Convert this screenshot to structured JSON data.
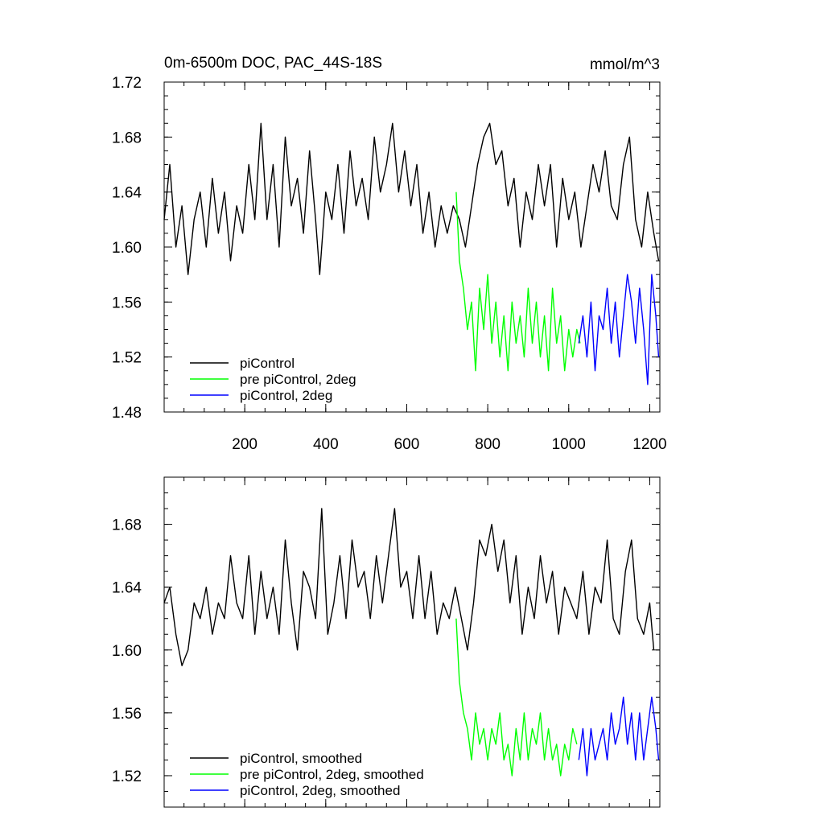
{
  "chart_data": [
    {
      "type": "line",
      "title": "0m-6500m DOC, PAC_44S-18S",
      "units": "mmol/m^3",
      "xlim": [
        1,
        1225
      ],
      "ylim": [
        1.48,
        1.72
      ],
      "x_ticks": [
        200,
        400,
        600,
        800,
        1000,
        1200
      ],
      "x_tick_labels": [
        "200",
        "400",
        "600",
        "800",
        "1000",
        "1200"
      ],
      "y_ticks": [
        1.48,
        1.52,
        1.56,
        1.6,
        1.64,
        1.68,
        1.72
      ],
      "y_tick_labels": [
        "1.48",
        "1.52",
        "1.56",
        "1.60",
        "1.64",
        "1.68",
        "1.72"
      ],
      "legend_position": "bottom-left",
      "series": [
        {
          "name": "piControl",
          "color": "#000000",
          "x": [
            1,
            15,
            30,
            45,
            60,
            75,
            90,
            105,
            120,
            135,
            150,
            165,
            180,
            195,
            210,
            225,
            240,
            255,
            270,
            285,
            300,
            315,
            330,
            345,
            360,
            375,
            385,
            400,
            415,
            430,
            445,
            460,
            475,
            490,
            505,
            520,
            535,
            550,
            565,
            580,
            595,
            610,
            625,
            640,
            655,
            670,
            685,
            700,
            715,
            730,
            745,
            760,
            775,
            790,
            805,
            820,
            835,
            850,
            865,
            880,
            895,
            910,
            925,
            940,
            955,
            970,
            985,
            1000,
            1015,
            1030,
            1045,
            1060,
            1075,
            1090,
            1105,
            1120,
            1135,
            1150,
            1165,
            1180,
            1195,
            1210,
            1222
          ],
          "values": [
            1.62,
            1.66,
            1.6,
            1.63,
            1.58,
            1.62,
            1.64,
            1.6,
            1.65,
            1.61,
            1.64,
            1.59,
            1.63,
            1.61,
            1.66,
            1.62,
            1.69,
            1.62,
            1.66,
            1.6,
            1.68,
            1.63,
            1.65,
            1.61,
            1.67,
            1.62,
            1.58,
            1.64,
            1.62,
            1.66,
            1.61,
            1.67,
            1.63,
            1.65,
            1.62,
            1.68,
            1.64,
            1.66,
            1.69,
            1.64,
            1.67,
            1.63,
            1.66,
            1.61,
            1.64,
            1.6,
            1.63,
            1.61,
            1.63,
            1.62,
            1.6,
            1.63,
            1.66,
            1.68,
            1.69,
            1.66,
            1.67,
            1.63,
            1.65,
            1.6,
            1.64,
            1.62,
            1.66,
            1.63,
            1.66,
            1.6,
            1.65,
            1.62,
            1.64,
            1.6,
            1.63,
            1.66,
            1.64,
            1.67,
            1.63,
            1.62,
            1.66,
            1.68,
            1.62,
            1.6,
            1.64,
            1.61,
            1.59
          ]
        },
        {
          "name": "pre piControl, 2deg",
          "color": "#00ff00",
          "x": [
            722,
            730,
            740,
            750,
            760,
            770,
            780,
            790,
            800,
            810,
            820,
            830,
            840,
            850,
            860,
            870,
            880,
            890,
            900,
            910,
            920,
            930,
            940,
            950,
            960,
            970,
            980,
            990,
            1000,
            1010,
            1020,
            1028
          ],
          "values": [
            1.64,
            1.59,
            1.57,
            1.54,
            1.56,
            1.51,
            1.57,
            1.54,
            1.58,
            1.53,
            1.56,
            1.52,
            1.55,
            1.51,
            1.56,
            1.53,
            1.55,
            1.52,
            1.57,
            1.53,
            1.56,
            1.52,
            1.55,
            1.51,
            1.57,
            1.53,
            1.55,
            1.51,
            1.54,
            1.52,
            1.54,
            1.53
          ]
        },
        {
          "name": "piControl, 2deg",
          "color": "#0000ff",
          "x": [
            1025,
            1035,
            1045,
            1055,
            1065,
            1075,
            1085,
            1095,
            1105,
            1115,
            1125,
            1135,
            1145,
            1155,
            1165,
            1175,
            1185,
            1195,
            1205,
            1215,
            1222
          ],
          "values": [
            1.53,
            1.55,
            1.52,
            1.56,
            1.51,
            1.55,
            1.54,
            1.57,
            1.53,
            1.56,
            1.52,
            1.55,
            1.58,
            1.56,
            1.53,
            1.57,
            1.54,
            1.5,
            1.58,
            1.55,
            1.52
          ]
        }
      ]
    },
    {
      "type": "line",
      "title": "",
      "xlim": [
        1,
        1225
      ],
      "ylim": [
        1.5,
        1.71
      ],
      "x_ticks": [
        200,
        400,
        600,
        800,
        1000,
        1200
      ],
      "x_tick_labels": [],
      "y_ticks": [
        1.52,
        1.56,
        1.6,
        1.64,
        1.68
      ],
      "y_tick_labels": [
        "1.52",
        "1.56",
        "1.60",
        "1.64",
        "1.68"
      ],
      "legend_position": "bottom-left",
      "series": [
        {
          "name": "piControl, smoothed",
          "color": "#000000",
          "x": [
            1,
            15,
            30,
            45,
            60,
            75,
            90,
            105,
            120,
            135,
            150,
            165,
            180,
            195,
            210,
            225,
            240,
            255,
            270,
            285,
            300,
            315,
            330,
            345,
            360,
            375,
            390,
            405,
            420,
            435,
            450,
            465,
            480,
            495,
            510,
            525,
            540,
            555,
            570,
            585,
            600,
            615,
            630,
            645,
            660,
            675,
            690,
            705,
            720,
            735,
            750,
            765,
            780,
            795,
            810,
            825,
            840,
            855,
            870,
            885,
            900,
            915,
            930,
            945,
            960,
            975,
            990,
            1005,
            1020,
            1035,
            1050,
            1065,
            1080,
            1095,
            1110,
            1125,
            1140,
            1155,
            1170,
            1185,
            1200,
            1210
          ],
          "values": [
            1.63,
            1.64,
            1.61,
            1.59,
            1.6,
            1.63,
            1.62,
            1.64,
            1.61,
            1.63,
            1.62,
            1.66,
            1.63,
            1.62,
            1.66,
            1.61,
            1.65,
            1.62,
            1.64,
            1.61,
            1.67,
            1.63,
            1.6,
            1.65,
            1.64,
            1.62,
            1.69,
            1.61,
            1.63,
            1.66,
            1.62,
            1.67,
            1.64,
            1.65,
            1.62,
            1.66,
            1.63,
            1.66,
            1.69,
            1.64,
            1.65,
            1.62,
            1.66,
            1.62,
            1.65,
            1.61,
            1.63,
            1.62,
            1.64,
            1.62,
            1.6,
            1.63,
            1.67,
            1.66,
            1.68,
            1.65,
            1.67,
            1.63,
            1.66,
            1.61,
            1.64,
            1.62,
            1.66,
            1.63,
            1.65,
            1.61,
            1.64,
            1.63,
            1.62,
            1.65,
            1.61,
            1.64,
            1.63,
            1.67,
            1.62,
            1.61,
            1.65,
            1.67,
            1.62,
            1.61,
            1.63,
            1.6
          ]
        },
        {
          "name": "pre piControl, 2deg, smoothed",
          "color": "#00ff00",
          "x": [
            722,
            730,
            740,
            750,
            760,
            770,
            780,
            790,
            800,
            810,
            820,
            830,
            840,
            850,
            860,
            870,
            880,
            890,
            900,
            910,
            920,
            930,
            940,
            950,
            960,
            970,
            980,
            990,
            1000,
            1010,
            1020
          ],
          "values": [
            1.62,
            1.58,
            1.56,
            1.55,
            1.53,
            1.56,
            1.54,
            1.55,
            1.53,
            1.55,
            1.54,
            1.56,
            1.53,
            1.54,
            1.52,
            1.55,
            1.53,
            1.56,
            1.53,
            1.55,
            1.54,
            1.56,
            1.53,
            1.55,
            1.53,
            1.54,
            1.52,
            1.54,
            1.53,
            1.55,
            1.54
          ]
        },
        {
          "name": "piControl, 2deg, smoothed",
          "color": "#0000ff",
          "x": [
            1025,
            1035,
            1045,
            1055,
            1065,
            1075,
            1085,
            1095,
            1105,
            1115,
            1125,
            1135,
            1145,
            1155,
            1165,
            1175,
            1185,
            1195,
            1205,
            1215,
            1222
          ],
          "values": [
            1.53,
            1.55,
            1.52,
            1.55,
            1.53,
            1.54,
            1.55,
            1.53,
            1.56,
            1.54,
            1.55,
            1.57,
            1.54,
            1.56,
            1.53,
            1.56,
            1.53,
            1.55,
            1.57,
            1.55,
            1.53
          ]
        }
      ]
    }
  ]
}
